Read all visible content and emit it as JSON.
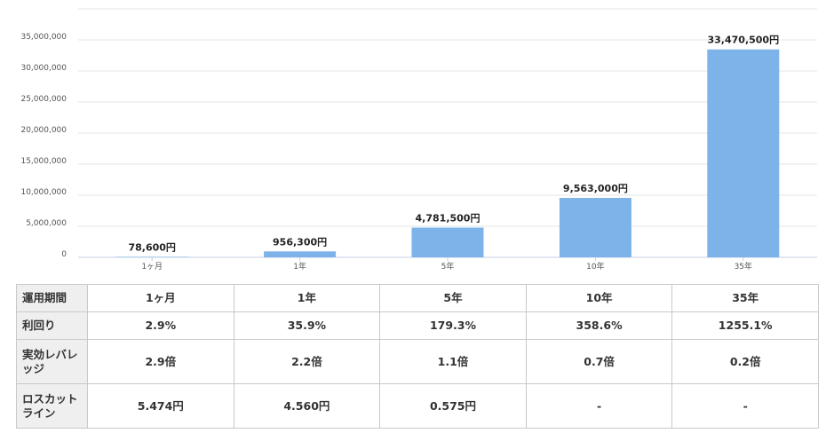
{
  "chart_data": {
    "type": "bar",
    "categories": [
      "1ヶ月",
      "1年",
      "5年",
      "10年",
      "35年"
    ],
    "values": [
      78600,
      956300,
      4781500,
      9563000,
      33470500
    ],
    "data_labels": [
      "78,600円",
      "956,300円",
      "4,781,500円",
      "9,563,000円",
      "33,470,500円"
    ],
    "ylim": [
      0,
      40000000
    ],
    "yticks": [
      0,
      5000000,
      10000000,
      15000000,
      20000000,
      25000000,
      30000000,
      35000000
    ],
    "ytick_labels": [
      "0",
      "5,000,000",
      "10,000,000",
      "15,000,000",
      "20,000,000",
      "25,000,000",
      "30,000,000",
      "35,000,000"
    ],
    "bar_color": "#7cb3e9",
    "grid": true
  },
  "table": {
    "rows": [
      {
        "header": "運用期間",
        "cells": [
          "1ヶ月",
          "1年",
          "5年",
          "10年",
          "35年"
        ]
      },
      {
        "header": "利回り",
        "cells": [
          "2.9%",
          "35.9%",
          "179.3%",
          "358.6%",
          "1255.1%"
        ]
      },
      {
        "header": "実効レバレッジ",
        "cells": [
          "2.9倍",
          "2.2倍",
          "1.1倍",
          "0.7倍",
          "0.2倍"
        ]
      },
      {
        "header": "ロスカットライン",
        "cells": [
          "5.474円",
          "4.560円",
          "0.575円",
          "-",
          "-"
        ]
      }
    ]
  }
}
